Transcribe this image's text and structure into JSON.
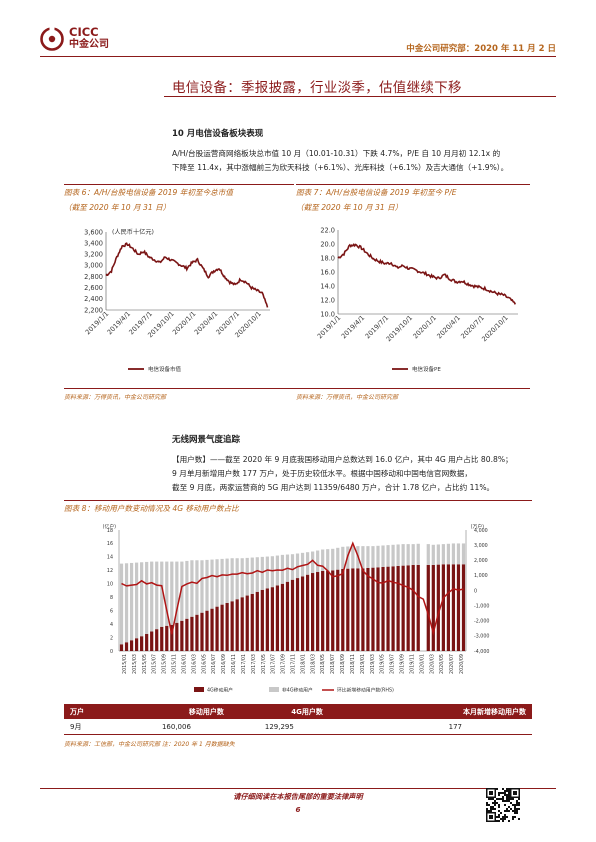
{
  "header": {
    "logo_letters": "CICC",
    "logo_cn": "中金公司",
    "right": "中金公司研究部：2020 年 11 月 2 日"
  },
  "title": "电信设备：季报披露，行业淡季，估值继续下移",
  "section1": {
    "heading": "10 月电信设备板块表现",
    "para_line1": "A/H/台股运营商网络板块总市值 10 月（10.01-10.31）下跌 4.7%，P/E 自 10 月月初 12.1x 的",
    "para_line2": "下降至 11.4x，其中涨幅前三为欣天科技（+6.1%）、光库科技（+6.1%）及吉大通信（+1.9%）。"
  },
  "fig6": {
    "caption1": "图表 6：A/H/台股电信设备 2019 年初至今总市值",
    "caption2": "（截至 2020 年 10 月 31 日）",
    "unit": "(人民币十亿元)",
    "legend": "电信设备市值"
  },
  "fig7": {
    "caption1": "图表 7：A/H/台股电信设备 2019 年初至今 P/E",
    "caption2": "（截至 2020 年 10 月 31 日）",
    "legend": "电信设备PE"
  },
  "source1": "资料来源：万得资讯，中金公司研究部",
  "source1b": "资料来源：万得资讯，中金公司研究部",
  "section2": {
    "heading": "无线网景气度追踪",
    "para_line1": "【用户数】——截至 2020 年 9 月底我国移动用户总数达到 16.0 亿户，其中 4G 用户占比 80.8%；",
    "para_line2": "9 月单月新增用户数 177 万户，处于历史较低水平。根据中国移动和中国电信官网数据，",
    "para_line3": "截至 9 月底，两家运营商的 5G 用户达到 11359/6480 万户，合计 1.78 亿户，占比约 11%。"
  },
  "fig8": {
    "caption": "图表 8：移动用户数变动情况及 4G 移动用户数占比",
    "left_unit": "(亿户)",
    "right_unit": "(万户)",
    "legend_4g": "4G移动用户",
    "legend_non4g": "非4G移动用户",
    "legend_net": "环比新增移动用户数(RHS)"
  },
  "table": {
    "headers": [
      "万户",
      "移动用户数",
      "4G用户数",
      "本月新增移动用户数"
    ],
    "row": [
      "9月",
      "160,006",
      "129,295",
      "177"
    ]
  },
  "source2": "资料来源：工信部，中金公司研究部  注：2020 年 1 月数据缺失",
  "footer": {
    "note": "请仔细阅读在本报告尾部的重要法律声明",
    "page": "6"
  },
  "chart_data": [
    {
      "type": "line",
      "name_ref": "fig6",
      "x_ticks": [
        "2019/1/1",
        "2019/4/1",
        "2019/7/1",
        "2019/10/1",
        "2020/1/1",
        "2020/4/1",
        "2020/7/1",
        "2020/10/1"
      ],
      "y_ticks": [
        "3,600",
        "3,400",
        "3,200",
        "3,000",
        "2,800",
        "2,600",
        "2,400",
        "2,200"
      ],
      "ylim": [
        2200,
        3600
      ],
      "series": [
        {
          "name": "电信设备市值",
          "values": [
            2820,
            2900,
            3150,
            3350,
            3380,
            3300,
            3200,
            3250,
            3150,
            3100,
            3050,
            3150,
            3100,
            3050,
            3000,
            2950,
            3050,
            3100,
            2950,
            2800,
            2900,
            2950,
            2800,
            2700,
            2650,
            2750,
            2700,
            2600,
            2550,
            2500,
            2250
          ]
        }
      ]
    },
    {
      "type": "line",
      "name_ref": "fig7",
      "x_ticks": [
        "2019/1/1",
        "2019/4/1",
        "2019/7/1",
        "2019/10/1",
        "2020/1/1",
        "2020/4/1",
        "2020/7/1",
        "2020/10/1"
      ],
      "y_ticks": [
        "22.0",
        "20.0",
        "18.0",
        "16.0",
        "14.0",
        "12.0",
        "10.0"
      ],
      "ylim": [
        10,
        22
      ],
      "series": [
        {
          "name": "电信设备PE",
          "values": [
            18.0,
            18.6,
            19.8,
            19.9,
            19.4,
            18.6,
            17.9,
            17.5,
            17.2,
            17.3,
            16.6,
            16.9,
            16.5,
            16.3,
            16.0,
            15.7,
            15.3,
            15.1,
            15.6,
            15.0,
            14.6,
            14.7,
            14.3,
            14.0,
            13.8,
            13.6,
            13.2,
            12.9,
            12.7,
            12.2,
            11.4
          ]
        }
      ]
    },
    {
      "type": "bar",
      "name_ref": "fig8",
      "x_ticks": [
        "2015/01",
        "2015/03",
        "2015/05",
        "2015/07",
        "2015/09",
        "2015/11",
        "2016/01",
        "2016/03",
        "2016/05",
        "2016/07",
        "2016/09",
        "2016/11",
        "2017/01",
        "2017/03",
        "2017/05",
        "2017/07",
        "2017/09",
        "2017/11",
        "2018/01",
        "2018/03",
        "2018/05",
        "2018/07",
        "2018/09",
        "2018/11",
        "2019/01",
        "2019/03",
        "2019/05",
        "2019/07",
        "2019/09",
        "2019/11",
        "2020/01",
        "2020/03",
        "2020/05",
        "2020/07",
        "2020/09"
      ],
      "y_left_ticks": [
        "18",
        "16",
        "14",
        "12",
        "10",
        "8",
        "6",
        "4",
        "2",
        "0"
      ],
      "y_right_ticks": [
        "4,000",
        "3,000",
        "2,000",
        "1,000",
        "0",
        "-1,000",
        "-2,000",
        "-3,000",
        "-4,000"
      ],
      "ylim_left": [
        0,
        18
      ],
      "ylim_right": [
        -4000,
        4000
      ],
      "series": [
        {
          "name": "4G移动用户",
          "values": [
            1.0,
            1.6,
            2.2,
            2.9,
            3.6,
            3.9,
            4.5,
            5.1,
            5.7,
            6.3,
            6.9,
            7.4,
            8.0,
            8.5,
            9.1,
            9.5,
            10.0,
            10.6,
            11.1,
            11.6,
            11.9,
            12.0,
            12.2,
            12.3,
            12.3,
            12.4,
            12.5,
            12.6,
            12.7,
            12.8,
            12.8,
            12.8,
            12.9,
            12.9,
            12.9
          ]
        },
        {
          "name": "非4G移动用户",
          "values": [
            12.0,
            11.5,
            11.0,
            10.4,
            9.7,
            9.4,
            8.8,
            8.4,
            7.8,
            7.3,
            6.8,
            6.4,
            5.8,
            5.4,
            4.9,
            4.6,
            4.3,
            3.8,
            3.5,
            3.2,
            3.2,
            3.2,
            3.3,
            3.3,
            3.3,
            3.2,
            3.2,
            3.2,
            3.2,
            3.1,
            3.2,
            3.0,
            3.0,
            3.1,
            3.1
          ]
        },
        {
          "name": "环比新增移动用户数(RHS)",
          "values": [
            500,
            250,
            600,
            400,
            350,
            -3000,
            300,
            500,
            700,
            900,
            1100,
            1000,
            1100,
            1200,
            1300,
            1300,
            1400,
            1500,
            1700,
            2000,
            1500,
            900,
            1200,
            3200,
            1300,
            700,
            600,
            500,
            300,
            -100,
            -500,
            -2900,
            -400,
            100,
            177
          ]
        }
      ]
    }
  ]
}
